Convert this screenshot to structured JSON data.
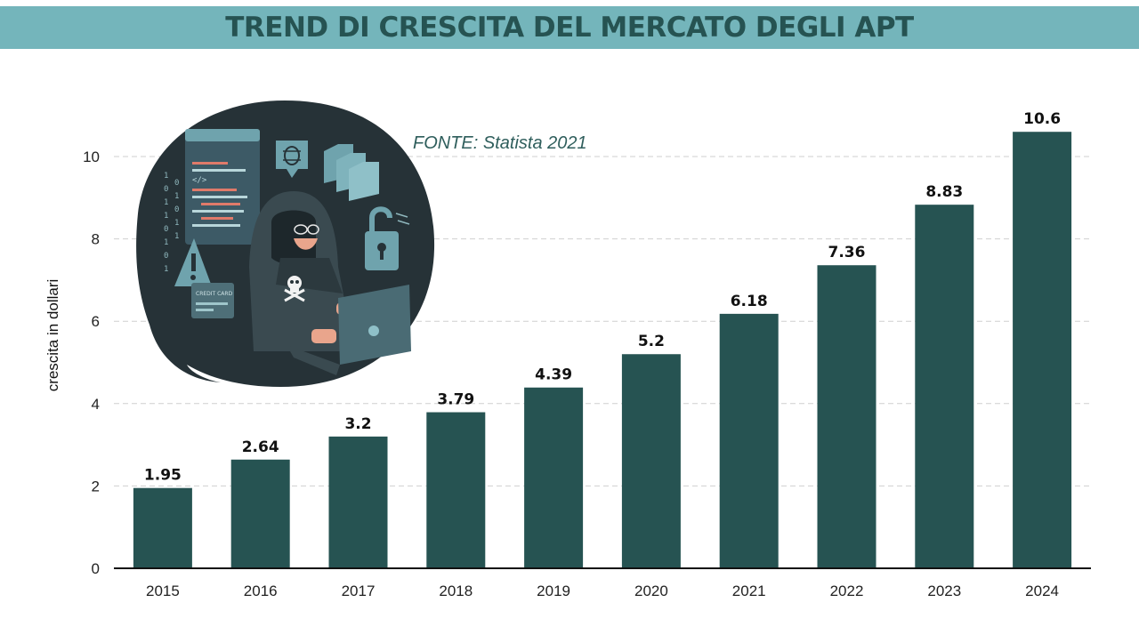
{
  "title": "TREND DI CRESCITA DEL MERCATO DEGLI APT",
  "source": "FONTE: Statista 2021",
  "illustration": {
    "icons": [
      "hacker-icon",
      "skull-icon",
      "bug-icon",
      "warning-icon",
      "padlock-icon",
      "credit-card-icon",
      "code-window-icon",
      "folders-icon"
    ],
    "card_text": "CREDIT CARD"
  },
  "colors": {
    "banner": "#74b5bb",
    "title": "#265352",
    "bars": "#265352",
    "illustration_bg": "#263237"
  },
  "chart_data": {
    "type": "bar",
    "title": "TREND DI CRESCITA DEL MERCATO DEGLI APT",
    "xlabel": "",
    "ylabel": "crescita in dollari",
    "categories": [
      "2015",
      "2016",
      "2017",
      "2018",
      "2019",
      "2020",
      "2021",
      "2022",
      "2023",
      "2024"
    ],
    "values": [
      1.95,
      2.64,
      3.2,
      3.79,
      4.39,
      5.2,
      6.18,
      7.36,
      8.83,
      10.6
    ],
    "value_labels": [
      "1.95",
      "2.64",
      "3.2",
      "3.79",
      "4.39",
      "5.2",
      "6.18",
      "7.36",
      "8.83",
      "10.6"
    ],
    "ylim": [
      0,
      11
    ],
    "yticks": [
      0,
      2,
      4,
      6,
      8,
      10
    ],
    "grid": true,
    "legend": "none"
  }
}
